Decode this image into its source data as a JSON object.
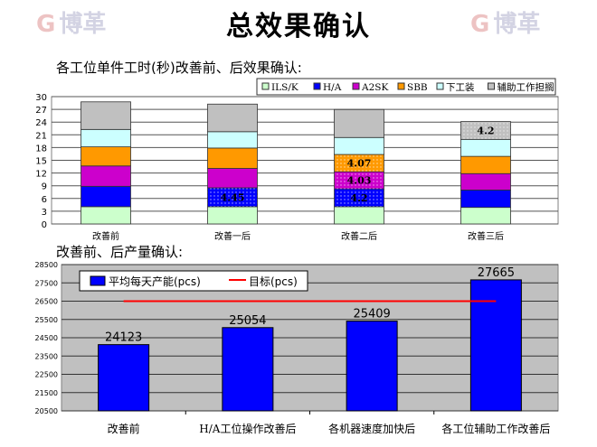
{
  "page": {
    "title": "总效果确认",
    "section1_heading": "各工位单件工时(秒)改善前、后效果确认:",
    "section2_heading": "改善前、后产量确认:",
    "watermark_text": "博革"
  },
  "chart_data": [
    {
      "type": "stacked-bar",
      "categories": [
        "改善前",
        "改善一后",
        "改善二后",
        "改善三后"
      ],
      "ylim": [
        0,
        30
      ],
      "yticks": [
        0,
        3,
        6,
        9,
        12,
        15,
        18,
        21,
        24,
        27,
        30
      ],
      "grid": true,
      "legend_position": "top-right",
      "series": [
        {
          "name": "ILS/K",
          "color": "#ccffcc",
          "values": [
            4.07,
            4.07,
            4.07,
            3.9
          ]
        },
        {
          "name": "H/A",
          "color": "#0000ff",
          "values": [
            4.8,
            4.45,
            4.2,
            4.1
          ]
        },
        {
          "name": "A2SK",
          "color": "#cc00cc",
          "values": [
            4.8,
            4.57,
            4.03,
            3.86
          ]
        },
        {
          "name": "SBB",
          "color": "#ff9900",
          "values": [
            4.5,
            4.8,
            4.07,
            4.07
          ]
        },
        {
          "name": "下工装",
          "color": "#ccffff",
          "values": [
            4.1,
            3.85,
            4.0,
            4.0
          ]
        },
        {
          "name": "辅助工作担搁",
          "color": "#c0c0c0",
          "values": [
            6.5,
            6.5,
            6.6,
            4.2
          ]
        }
      ],
      "data_labels": [
        {
          "series": "H/A",
          "category": "改善一后",
          "text": "4.45"
        },
        {
          "series": "H/A",
          "category": "改善二后",
          "text": "4.2"
        },
        {
          "series": "A2SK",
          "category": "改善二后",
          "text": "4.03"
        },
        {
          "series": "SBB",
          "category": "改善二后",
          "text": "4.07"
        },
        {
          "series": "辅助工作担搁",
          "category": "改善三后",
          "text": "4.2"
        }
      ]
    },
    {
      "type": "bar",
      "categories": [
        "改善前",
        "H/A工位操作改善后",
        "各机器速度加快后",
        "各工位辅助工作改善后"
      ],
      "series": [
        {
          "name": "平均每天产能(pcs)",
          "color": "#0000ff",
          "values": [
            24123,
            25054,
            25409,
            27665
          ]
        },
        {
          "name": "目标(pcs)",
          "type": "line",
          "color": "#ff0000",
          "values": [
            26500,
            26500,
            26500,
            26500
          ]
        }
      ],
      "ylim": [
        20500,
        28500
      ],
      "yticks": [
        20500,
        21500,
        22500,
        23500,
        24500,
        25500,
        26500,
        27500,
        28500
      ],
      "grid": true,
      "plot_background": "#c0c0c0",
      "legend_position": "top-left"
    }
  ]
}
